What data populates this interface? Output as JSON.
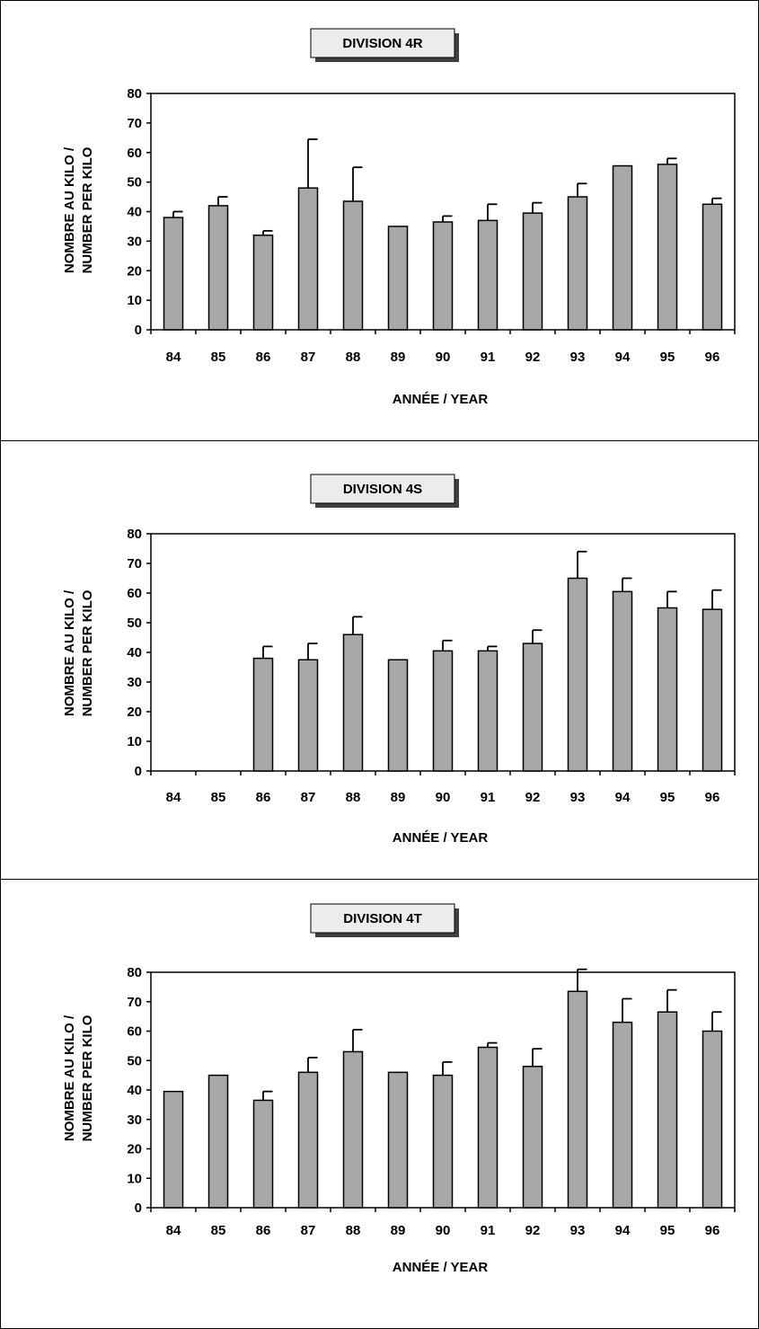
{
  "chart_data": [
    {
      "type": "bar",
      "title": "DIVISION  4R",
      "xlabel": "ANNÉE  /  YEAR",
      "ylabel": [
        "NOMBRE AU KILO /",
        "NUMBER PER KILO"
      ],
      "ylim": [
        0,
        80
      ],
      "yticks": [
        0,
        10,
        20,
        30,
        40,
        50,
        60,
        70,
        80
      ],
      "categories": [
        "84",
        "85",
        "86",
        "87",
        "88",
        "89",
        "90",
        "91",
        "92",
        "93",
        "94",
        "95",
        "96"
      ],
      "values": [
        38,
        42,
        32,
        48,
        43.5,
        35,
        36.5,
        37,
        39.5,
        45,
        55.5,
        56,
        42.5
      ],
      "error_upper": [
        40,
        45,
        33.5,
        64.5,
        55,
        null,
        38.5,
        42.5,
        43,
        49.5,
        null,
        58,
        44.5
      ],
      "bar_color": "#a8a8a8"
    },
    {
      "type": "bar",
      "title": "DIVISION  4S",
      "xlabel": "ANNÉE  /  YEAR",
      "ylabel": [
        "NOMBRE AU KILO /",
        "NUMBER PER KILO"
      ],
      "ylim": [
        0,
        80
      ],
      "yticks": [
        0,
        10,
        20,
        30,
        40,
        50,
        60,
        70,
        80
      ],
      "categories": [
        "84",
        "85",
        "86",
        "87",
        "88",
        "89",
        "90",
        "91",
        "92",
        "93",
        "94",
        "95",
        "96"
      ],
      "values": [
        null,
        null,
        38,
        37.5,
        46,
        37.5,
        40.5,
        40.5,
        43,
        65,
        60.5,
        55,
        54.5
      ],
      "error_upper": [
        null,
        null,
        42,
        43,
        52,
        null,
        44,
        42,
        47.5,
        74,
        65,
        60.5,
        61
      ],
      "bar_color": "#a8a8a8"
    },
    {
      "type": "bar",
      "title": "DIVISION  4T",
      "xlabel": "ANNÉE  /  YEAR",
      "ylabel": [
        "NOMBRE AU KILO /",
        "NUMBER PER KILO"
      ],
      "ylim": [
        0,
        80
      ],
      "yticks": [
        0,
        10,
        20,
        30,
        40,
        50,
        60,
        70,
        80
      ],
      "categories": [
        "84",
        "85",
        "86",
        "87",
        "88",
        "89",
        "90",
        "91",
        "92",
        "93",
        "94",
        "95",
        "96"
      ],
      "values": [
        39.5,
        45,
        36.5,
        46,
        53,
        46,
        45,
        54.5,
        48,
        73.5,
        63,
        66.5,
        60
      ],
      "error_upper": [
        null,
        null,
        39.5,
        51,
        60.5,
        null,
        49.5,
        56,
        54,
        81,
        71,
        74,
        66.5
      ],
      "bar_color": "#a8a8a8"
    }
  ]
}
